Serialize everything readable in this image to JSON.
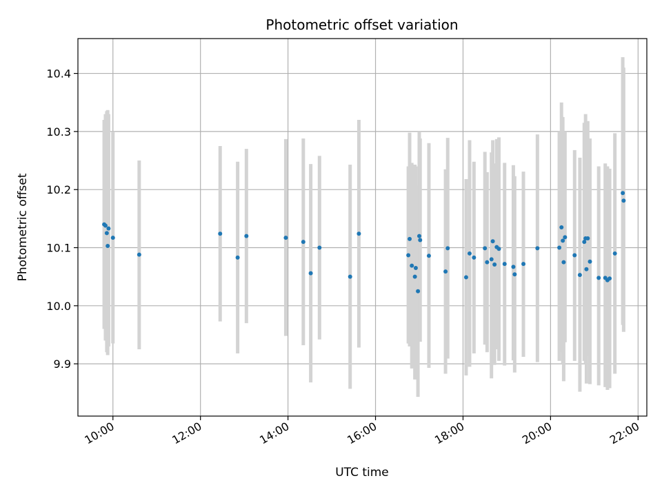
{
  "chart_data": {
    "type": "scatter",
    "title": "Photometric offset variation",
    "xlabel": "UTC time",
    "ylabel": "Photometric offset",
    "grid": true,
    "colors": {
      "point": "#1f77b4",
      "errorbar": "#d3d3d3",
      "grid": "#b0b0b0"
    },
    "x_unit": "hours UTC",
    "xlim": [
      9.2,
      22.2
    ],
    "ylim": [
      9.81,
      10.46
    ],
    "xticks": [
      10,
      12,
      14,
      16,
      18,
      20,
      22
    ],
    "xtick_labels": [
      "10:00",
      "12:00",
      "14:00",
      "16:00",
      "18:00",
      "20:00",
      "22:00"
    ],
    "yticks": [
      9.9,
      10.0,
      10.1,
      10.2,
      10.3,
      10.4
    ],
    "ytick_labels": [
      "9.9",
      "10.0",
      "10.1",
      "10.2",
      "10.3",
      "10.4"
    ],
    "points": [
      {
        "x": 9.8,
        "y": 10.14,
        "lo": 9.96,
        "hi": 10.32
      },
      {
        "x": 9.83,
        "y": 10.138,
        "lo": 9.94,
        "hi": 10.33
      },
      {
        "x": 9.86,
        "y": 10.125,
        "lo": 9.92,
        "hi": 10.335
      },
      {
        "x": 9.88,
        "y": 10.103,
        "lo": 9.915,
        "hi": 10.337
      },
      {
        "x": 9.9,
        "y": 10.133,
        "lo": 9.93,
        "hi": 10.33
      },
      {
        "x": 10.0,
        "y": 10.117,
        "lo": 9.935,
        "hi": 10.3
      },
      {
        "x": 10.6,
        "y": 10.088,
        "lo": 9.925,
        "hi": 10.25
      },
      {
        "x": 12.45,
        "y": 10.124,
        "lo": 9.973,
        "hi": 10.275
      },
      {
        "x": 12.85,
        "y": 10.083,
        "lo": 9.918,
        "hi": 10.248
      },
      {
        "x": 13.05,
        "y": 10.12,
        "lo": 9.97,
        "hi": 10.27
      },
      {
        "x": 13.95,
        "y": 10.117,
        "lo": 9.948,
        "hi": 10.287
      },
      {
        "x": 14.35,
        "y": 10.11,
        "lo": 9.932,
        "hi": 10.288
      },
      {
        "x": 14.52,
        "y": 10.056,
        "lo": 9.868,
        "hi": 10.244
      },
      {
        "x": 14.72,
        "y": 10.1,
        "lo": 9.942,
        "hi": 10.258
      },
      {
        "x": 15.42,
        "y": 10.05,
        "lo": 9.857,
        "hi": 10.243
      },
      {
        "x": 15.62,
        "y": 10.124,
        "lo": 9.928,
        "hi": 10.32
      },
      {
        "x": 16.75,
        "y": 10.087,
        "lo": 9.935,
        "hi": 10.24
      },
      {
        "x": 16.78,
        "y": 10.115,
        "lo": 9.93,
        "hi": 10.298
      },
      {
        "x": 16.83,
        "y": 10.069,
        "lo": 9.892,
        "hi": 10.246
      },
      {
        "x": 16.9,
        "y": 10.05,
        "lo": 9.873,
        "hi": 10.243
      },
      {
        "x": 16.92,
        "y": 10.065,
        "lo": 9.89,
        "hi": 10.24
      },
      {
        "x": 16.97,
        "y": 10.025,
        "lo": 9.843,
        "hi": 10.207
      },
      {
        "x": 17.0,
        "y": 10.12,
        "lo": 9.942,
        "hi": 10.3
      },
      {
        "x": 17.02,
        "y": 10.113,
        "lo": 9.938,
        "hi": 10.288
      },
      {
        "x": 17.22,
        "y": 10.086,
        "lo": 9.893,
        "hi": 10.28
      },
      {
        "x": 17.6,
        "y": 10.059,
        "lo": 9.883,
        "hi": 10.235
      },
      {
        "x": 17.65,
        "y": 10.099,
        "lo": 9.909,
        "hi": 10.289
      },
      {
        "x": 18.07,
        "y": 10.049,
        "lo": 9.88,
        "hi": 10.218
      },
      {
        "x": 18.15,
        "y": 10.09,
        "lo": 9.895,
        "hi": 10.285
      },
      {
        "x": 18.25,
        "y": 10.083,
        "lo": 9.918,
        "hi": 10.248
      },
      {
        "x": 18.5,
        "y": 10.099,
        "lo": 9.933,
        "hi": 10.265
      },
      {
        "x": 18.55,
        "y": 10.075,
        "lo": 9.92,
        "hi": 10.23
      },
      {
        "x": 18.65,
        "y": 10.08,
        "lo": 9.875,
        "hi": 10.264
      },
      {
        "x": 18.68,
        "y": 10.111,
        "lo": 9.935,
        "hi": 10.285
      },
      {
        "x": 18.72,
        "y": 10.071,
        "lo": 9.898,
        "hi": 10.245
      },
      {
        "x": 18.77,
        "y": 10.101,
        "lo": 9.925,
        "hi": 10.287
      },
      {
        "x": 18.82,
        "y": 10.098,
        "lo": 9.905,
        "hi": 10.29
      },
      {
        "x": 18.95,
        "y": 10.072,
        "lo": 9.897,
        "hi": 10.246
      },
      {
        "x": 19.15,
        "y": 10.067,
        "lo": 9.906,
        "hi": 10.242
      },
      {
        "x": 19.18,
        "y": 10.054,
        "lo": 9.885,
        "hi": 10.223
      },
      {
        "x": 19.38,
        "y": 10.072,
        "lo": 9.912,
        "hi": 10.231
      },
      {
        "x": 19.7,
        "y": 10.099,
        "lo": 9.903,
        "hi": 10.295
      },
      {
        "x": 20.2,
        "y": 10.1,
        "lo": 9.905,
        "hi": 10.3
      },
      {
        "x": 20.25,
        "y": 10.135,
        "lo": 9.92,
        "hi": 10.35
      },
      {
        "x": 20.28,
        "y": 10.112,
        "lo": 9.9,
        "hi": 10.325
      },
      {
        "x": 20.3,
        "y": 10.075,
        "lo": 9.87,
        "hi": 10.28
      },
      {
        "x": 20.33,
        "y": 10.118,
        "lo": 9.937,
        "hi": 10.3
      },
      {
        "x": 20.55,
        "y": 10.087,
        "lo": 9.905,
        "hi": 10.268
      },
      {
        "x": 20.67,
        "y": 10.053,
        "lo": 9.852,
        "hi": 10.255
      },
      {
        "x": 20.77,
        "y": 10.11,
        "lo": 9.905,
        "hi": 10.315
      },
      {
        "x": 20.8,
        "y": 10.116,
        "lo": 9.9,
        "hi": 10.33
      },
      {
        "x": 20.82,
        "y": 10.063,
        "lo": 9.866,
        "hi": 10.26
      },
      {
        "x": 20.85,
        "y": 10.116,
        "lo": 9.913,
        "hi": 10.318
      },
      {
        "x": 20.9,
        "y": 10.076,
        "lo": 9.865,
        "hi": 10.288
      },
      {
        "x": 21.1,
        "y": 10.048,
        "lo": 9.863,
        "hi": 10.24
      },
      {
        "x": 21.25,
        "y": 10.048,
        "lo": 9.86,
        "hi": 10.245
      },
      {
        "x": 21.3,
        "y": 10.044,
        "lo": 9.855,
        "hi": 10.24
      },
      {
        "x": 21.35,
        "y": 10.047,
        "lo": 9.858,
        "hi": 10.236
      },
      {
        "x": 21.47,
        "y": 10.09,
        "lo": 9.883,
        "hi": 10.297
      },
      {
        "x": 21.65,
        "y": 10.194,
        "lo": 9.967,
        "hi": 10.428
      },
      {
        "x": 21.67,
        "y": 10.181,
        "lo": 9.955,
        "hi": 10.41
      }
    ]
  }
}
